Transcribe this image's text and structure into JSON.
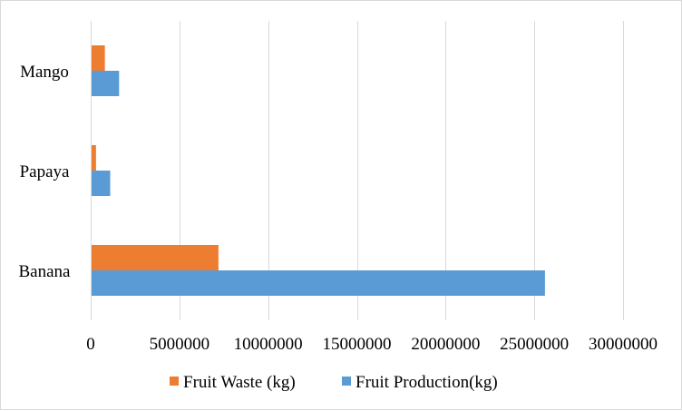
{
  "chart_data": {
    "type": "bar",
    "orientation": "horizontal",
    "title": "",
    "xlabel": "",
    "ylabel": "",
    "categories": [
      "Banana",
      "Papaya",
      "Mango"
    ],
    "series": [
      {
        "name": "Fruit Waste (kg)",
        "color": "#ED7D31",
        "values": [
          7200000,
          300000,
          800000
        ]
      },
      {
        "name": "Fruit Production(kg)",
        "color": "#5B9BD5",
        "values": [
          25600000,
          1100000,
          1600000
        ]
      }
    ],
    "xlim": [
      0,
      30000000
    ],
    "ticks": [
      0,
      5000000,
      10000000,
      15000000,
      20000000,
      25000000,
      30000000
    ],
    "tick_labels": [
      "0",
      "5000000",
      "10000000",
      "15000000",
      "20000000",
      "25000000",
      "30000000"
    ],
    "grid": true,
    "gridline_color": "#d9d9d9",
    "legend_position": "bottom"
  }
}
